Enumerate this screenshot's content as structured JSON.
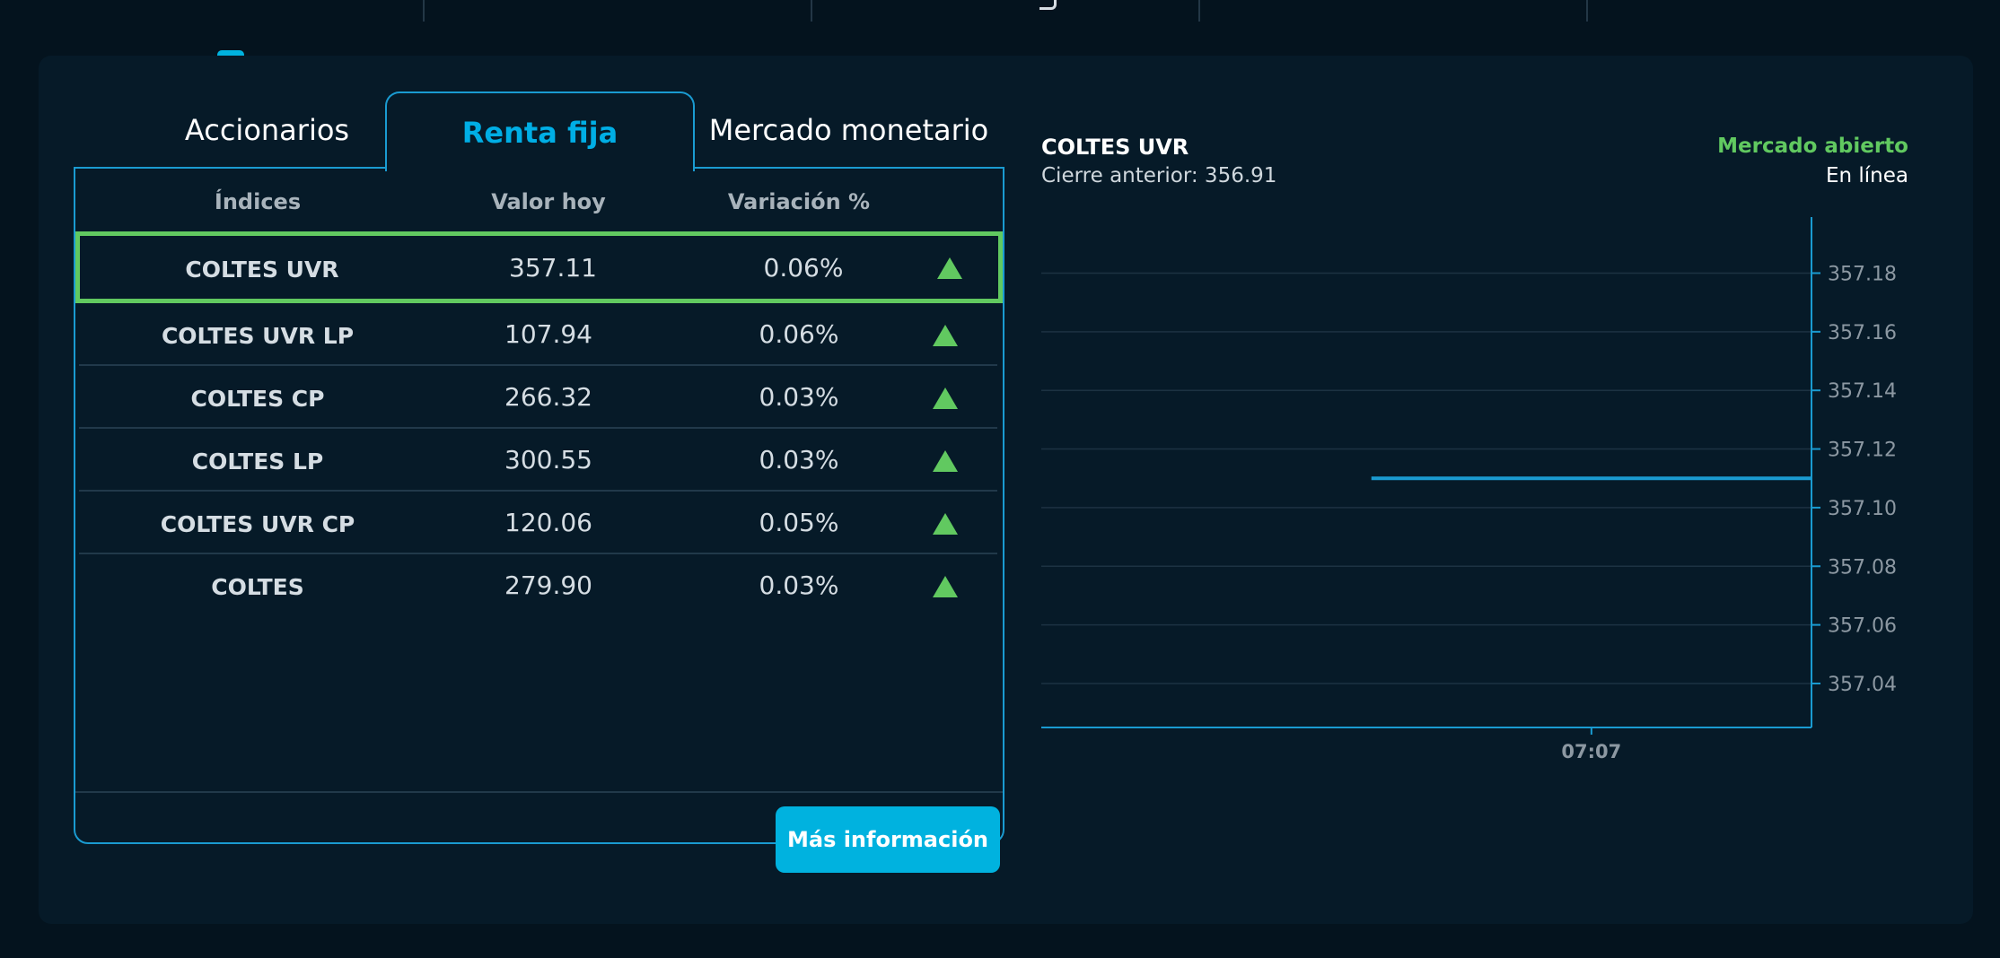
{
  "tabs": [
    {
      "label": "Accionarios",
      "active": false
    },
    {
      "label": "Renta fija",
      "active": true
    },
    {
      "label": "Mercado monetario",
      "active": false
    }
  ],
  "table": {
    "headers": [
      "Índices",
      "Valor hoy",
      "Variación %"
    ],
    "rows": [
      {
        "name": "COLTES UVR",
        "value": "357.11",
        "variation": "0.06%",
        "trend": "up",
        "selected": true
      },
      {
        "name": "COLTES UVR LP",
        "value": "107.94",
        "variation": "0.06%",
        "trend": "up",
        "selected": false
      },
      {
        "name": "COLTES CP",
        "value": "266.32",
        "variation": "0.03%",
        "trend": "up",
        "selected": false
      },
      {
        "name": "COLTES LP",
        "value": "300.55",
        "variation": "0.03%",
        "trend": "up",
        "selected": false
      },
      {
        "name": "COLTES UVR CP",
        "value": "120.06",
        "variation": "0.05%",
        "trend": "up",
        "selected": false
      },
      {
        "name": "COLTES",
        "value": "279.90",
        "variation": "0.03%",
        "trend": "up",
        "selected": false
      }
    ],
    "more_button": "Más información"
  },
  "detail": {
    "title": "COLTES UVR",
    "previous_close": "Cierre anterior: 356.91",
    "market_status": "Mercado abierto",
    "connection": "En línea"
  },
  "colors": {
    "accent": "#00b2df",
    "up": "#61c960",
    "background": "#061a28"
  },
  "icons": {
    "trend_up": "up-triangle-icon"
  },
  "chart_data": {
    "type": "line",
    "title": "",
    "xlabel": "",
    "ylabel": "",
    "y_ticks": [
      "357.18",
      "357.16",
      "357.14",
      "357.12",
      "357.10",
      "357.08",
      "357.06",
      "357.04"
    ],
    "ylim": [
      357.025,
      357.193
    ],
    "x_ticks": [
      "07:07"
    ],
    "series": [
      {
        "values": [
          {
            "x": "07:05",
            "y": 357.11
          },
          {
            "x": "07:09",
            "y": 357.11
          }
        ]
      }
    ],
    "grid": true,
    "axis_position": "right"
  }
}
